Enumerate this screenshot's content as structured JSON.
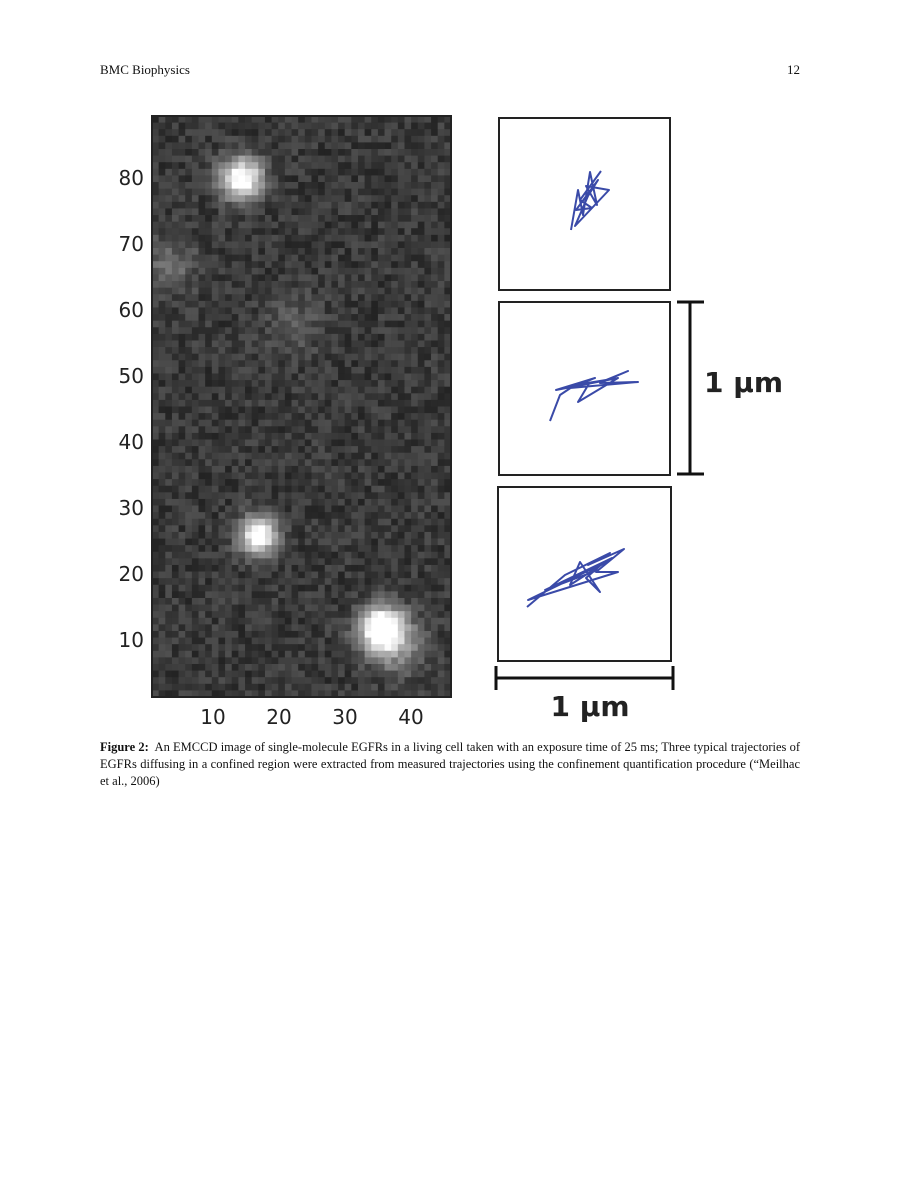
{
  "header": {
    "journal": "BMC Biophysics",
    "page_number": "12"
  },
  "figure": {
    "image_y_tick_labels": [
      "80",
      "70",
      "60",
      "50",
      "40",
      "30",
      "20",
      "10"
    ],
    "image_x_tick_labels": [
      "10",
      "20",
      "30",
      "40"
    ],
    "vertical_scale_label": "1 µm",
    "horizontal_scale_label": "1 µm"
  },
  "caption": {
    "label": "Figure 2:",
    "text": "An EMCCD image of single-molecule EGFRs in a living cell taken with an exposure time of 25 ms; Three typical trajectories of EGFRs diffusing in a confined region were extracted from measured trajectories using the confinement quantification procedure (“Meilhac et al., 2006)"
  }
}
